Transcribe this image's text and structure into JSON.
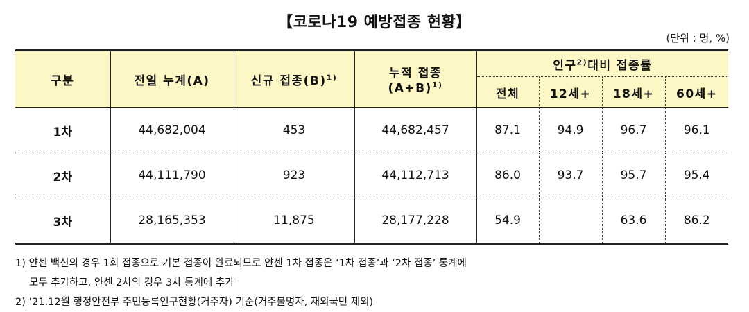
{
  "title": "【코로나19 예방접종 현황】",
  "unit": "(단위 : 명, %)",
  "headers": {
    "category": "구분",
    "prev_total": "전일 누계(A)",
    "new_doses": "신규 접종(B)",
    "new_doses_sup": "1)",
    "cumulative_line1": "누적 접종",
    "cumulative_line2": "(A+B)",
    "cumulative_sup": "1)",
    "rate_group_pre": "인구",
    "rate_group_sup": "2)",
    "rate_group_post": "대비 접종률",
    "rate_all": "전체",
    "rate_12": "12세+",
    "rate_18": "18세+",
    "rate_60": "60세+"
  },
  "rows": [
    {
      "label": "1차",
      "prev_total": "44,682,004",
      "new_doses": "453",
      "cumulative": "44,682,457",
      "rate_all": "87.1",
      "rate_12": "94.9",
      "rate_18": "96.7",
      "rate_60": "96.1"
    },
    {
      "label": "2차",
      "prev_total": "44,111,790",
      "new_doses": "923",
      "cumulative": "44,112,713",
      "rate_all": "86.0",
      "rate_12": "93.7",
      "rate_18": "95.7",
      "rate_60": "95.4"
    },
    {
      "label": "3차",
      "prev_total": "28,165,353",
      "new_doses": "11,875",
      "cumulative": "28,177,228",
      "rate_all": "54.9",
      "rate_12": "",
      "rate_18": "63.6",
      "rate_60": "86.2"
    }
  ],
  "notes": {
    "note1_line1": "1) 얀센 백신의 경우 1회 접종으로 기본 접종이 완료되므로 얀센 1차 접종은 ‘1차 접종’과 ‘2차 접종’ 통계에",
    "note1_line2": "모두 추가하고, 얀센 2차의 경우 3차 통계에 추가",
    "note2": "2) ’21.12월 행정안전부 주민등록인구현황(거주자) 기준(거주불명자, 재외국민 제외)"
  }
}
